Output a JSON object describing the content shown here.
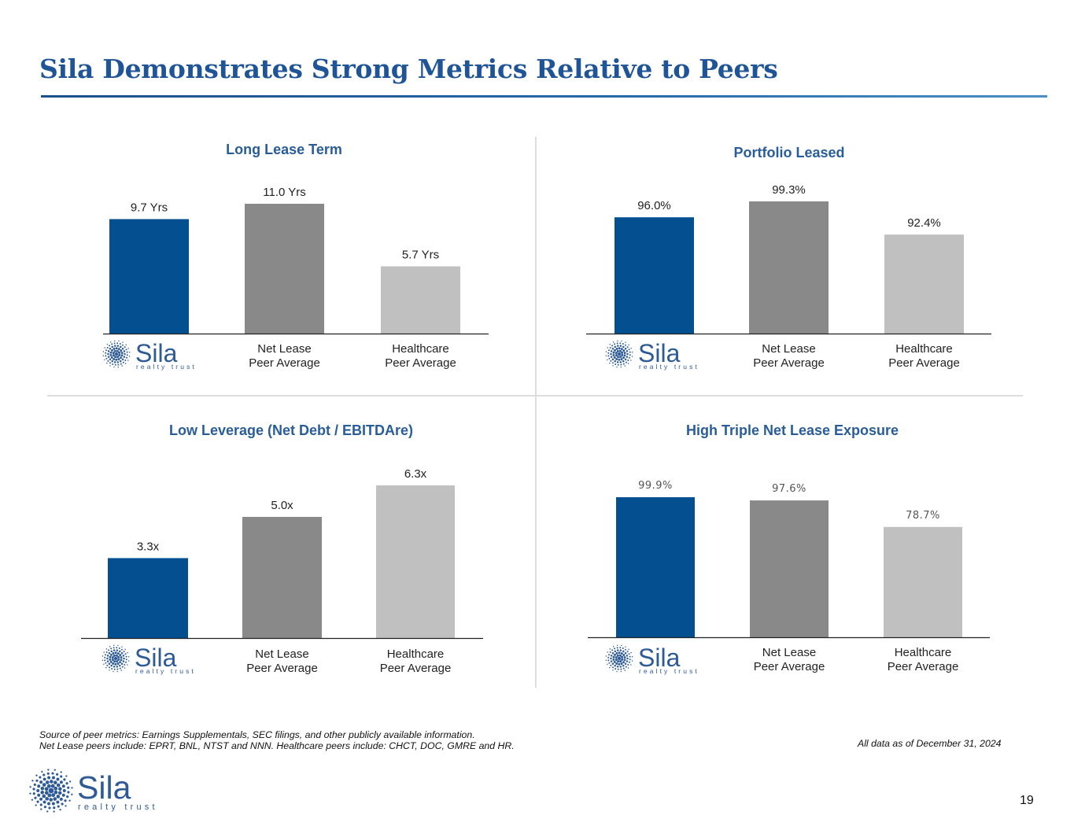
{
  "page": {
    "title": "Sila Demonstrates Strong Metrics Relative to Peers",
    "page_number": "19"
  },
  "footnotes": {
    "source": "Source of peer metrics: Earnings Supplementals, SEC filings, and other publicly available information.",
    "peers": "Net Lease peers include: EPRT, BNL, NTST and NNN. Healthcare peers include: CHCT, DOC, GMRE and HR.",
    "as_of": "All data as of December 31, 2024"
  },
  "logo": {
    "word": "Sila",
    "tagline": "realty trust"
  },
  "colors": {
    "title": "#1f5596",
    "chart_title": "#285d9a",
    "sila_bar": "#034f90",
    "net_lease_bar": "#898989",
    "healthcare_bar": "#c0c0c0",
    "logo": "#2e5b96"
  },
  "chart_data": [
    {
      "type": "bar",
      "title": "Long Lease Term",
      "categories": [
        "Sila",
        "Net Lease\nPeer Average",
        "Healthcare\nPeer Average"
      ],
      "values": [
        9.7,
        11.0,
        5.7
      ],
      "labels": [
        "9.7 Yrs",
        "11.0 Yrs",
        "5.7 Yrs"
      ],
      "ylim": [
        0,
        11.0
      ],
      "xlabel": "",
      "ylabel": ""
    },
    {
      "type": "bar",
      "title": "Portfolio Leased",
      "categories": [
        "Sila",
        "Net Lease\nPeer Average",
        "Healthcare\nPeer Average"
      ],
      "values": [
        96.0,
        99.3,
        92.4
      ],
      "labels": [
        "96.0%",
        "99.3%",
        "92.4%"
      ],
      "ylim": [
        71.8,
        99.3
      ],
      "xlabel": "",
      "ylabel": ""
    },
    {
      "type": "bar",
      "title": "Low Leverage (Net Debt / EBITDAre)",
      "categories": [
        "Sila",
        "Net Lease\nPeer Average",
        "Healthcare\nPeer Average"
      ],
      "values": [
        3.3,
        5.0,
        6.3
      ],
      "labels": [
        "3.3x",
        "5.0x",
        "6.3x"
      ],
      "ylim": [
        0,
        6.3
      ],
      "xlabel": "",
      "ylabel": ""
    },
    {
      "type": "bar",
      "title": "High Triple Net Lease Exposure",
      "categories": [
        "Sila",
        "Net Lease\nPeer Average",
        "Healthcare\nPeer Average"
      ],
      "values": [
        99.9,
        97.6,
        78.7
      ],
      "labels": [
        "99.9%",
        "97.6%",
        "78.7%"
      ],
      "ylim": [
        0,
        99.9
      ],
      "xlabel": "",
      "ylabel": ""
    }
  ]
}
